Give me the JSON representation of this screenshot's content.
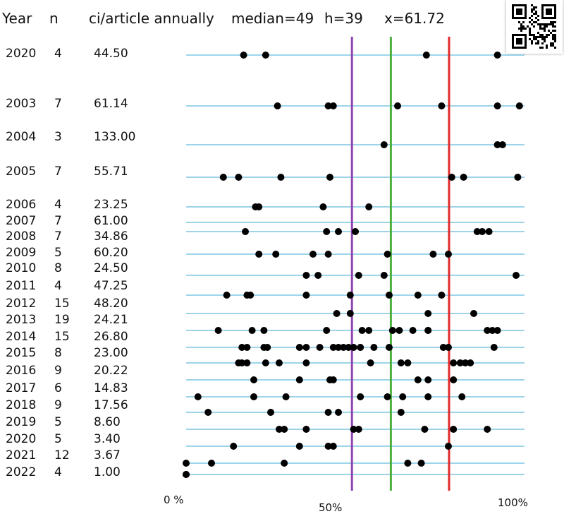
{
  "header": {
    "year": "Year",
    "n": "n",
    "ci": "ci/article annually",
    "median": "median=49",
    "h": "h=39",
    "x": "x=61.72"
  },
  "chart_data": {
    "type": "scatter",
    "xlabel": "",
    "x_tick_labels": [
      "0 %",
      "50%",
      "100%"
    ],
    "xlim": [
      0,
      100
    ],
    "reference_lines": [
      {
        "label": "median=49",
        "x": 49,
        "color": "#8e44ad"
      },
      {
        "label": "h=39",
        "x": 60.5,
        "color": "#4caf3f"
      },
      {
        "label": "x=61.72",
        "x": 77.7,
        "color": "#e02b2b"
      }
    ],
    "rows": [
      {
        "year": "2020",
        "n": "4",
        "ci": "44.50",
        "points": [
          17,
          23.5,
          71,
          92
        ]
      },
      {
        "year": "2003",
        "n": "7",
        "ci": "61.14",
        "points": [
          27,
          42,
          43.5,
          62.5,
          75.5,
          92,
          98.5
        ]
      },
      {
        "year": "2004",
        "n": "3",
        "ci": "133.00",
        "points": [
          58.5,
          92,
          93.5
        ]
      },
      {
        "year": "2005",
        "n": "7",
        "ci": "55.71",
        "points": [
          11,
          15.5,
          28,
          42.5,
          78.5,
          82,
          98
        ]
      },
      {
        "year": "2006",
        "n": "4",
        "ci": "23.25",
        "points": [
          20.5,
          21.5,
          40.5,
          54
        ]
      },
      {
        "year": "2007",
        "n": "7",
        "ci": "61.00",
        "points": []
      },
      {
        "year": "2008",
        "n": "7",
        "ci": "34.86",
        "points": [
          17.5,
          41.5,
          45,
          50,
          86,
          87.5,
          89.5
        ]
      },
      {
        "year": "2009",
        "n": "5",
        "ci": "60.20",
        "points": [
          21.5,
          26.5,
          37.5,
          42,
          59.5,
          73,
          77.5
        ]
      },
      {
        "year": "2010",
        "n": "8",
        "ci": "24.50",
        "points": [
          35.5,
          39,
          51,
          58.5,
          97.5
        ]
      },
      {
        "year": "2011",
        "n": "4",
        "ci": "47.25",
        "points": [
          12,
          18,
          19,
          35.5,
          48.5,
          60,
          68.5,
          75.5
        ]
      },
      {
        "year": "2012",
        "n": "15",
        "ci": "48.20",
        "points": [
          44.5,
          48.5,
          71.5,
          85
        ]
      },
      {
        "year": "2013",
        "n": "19",
        "ci": "24.21",
        "points": [
          9.5,
          19.5,
          23,
          41.5,
          52,
          54,
          61,
          63,
          67,
          71.5,
          71.5,
          89,
          90.5,
          92
        ]
      },
      {
        "year": "2014",
        "n": "15",
        "ci": "26.80",
        "points": [
          16.5,
          18,
          23,
          24,
          33.5,
          35.5,
          39.5,
          43.5,
          45,
          46.5,
          48,
          49.5,
          51.5,
          55.5,
          60,
          76,
          77.5,
          91
        ]
      },
      {
        "year": "2015",
        "n": "8",
        "ci": "23.00",
        "points": [
          15.5,
          16.5,
          18,
          23.5,
          27.5,
          35.5,
          54.5,
          63.5,
          65.5,
          79,
          81,
          82.5,
          84
        ]
      },
      {
        "year": "2016",
        "n": "9",
        "ci": "20.22",
        "points": [
          20,
          33.5,
          42.5,
          43.5,
          68.5,
          71.5,
          79
        ]
      },
      {
        "year": "2017",
        "n": "6",
        "ci": "14.83",
        "points": [
          3.5,
          20,
          29.5,
          51.5,
          59.5,
          64,
          71.5,
          81.5
        ]
      },
      {
        "year": "2018",
        "n": "9",
        "ci": "17.56",
        "points": [
          6.5,
          25,
          42,
          45,
          63.5
        ]
      },
      {
        "year": "2019",
        "n": "5",
        "ci": "8.60",
        "points": [
          27.5,
          29,
          35.5,
          49.5,
          51,
          70.5,
          79,
          89
        ]
      },
      {
        "year": "2020",
        "n": "5",
        "ci": "3.40",
        "points": [
          14,
          33.5,
          42,
          43.5,
          77.5
        ]
      },
      {
        "year": "2021",
        "n": "12",
        "ci": "3.67",
        "points": [
          0,
          7.5,
          29,
          65.5,
          69.5
        ]
      },
      {
        "year": "2022",
        "n": "4",
        "ci": "1.00",
        "points": [
          0,
          0
        ]
      }
    ]
  },
  "colors": {
    "row_line": "#7ec6e4",
    "dot": "#000000"
  }
}
